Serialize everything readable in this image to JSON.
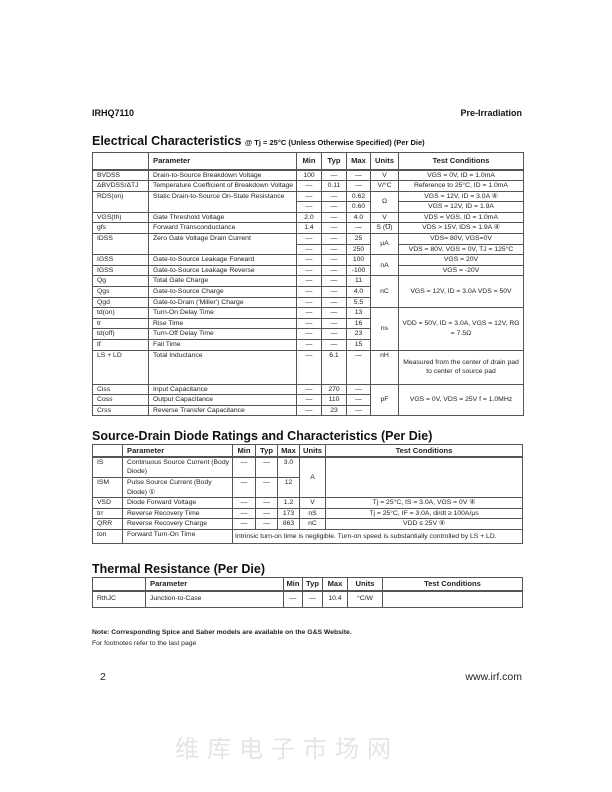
{
  "header": {
    "part_number": "IRHQ7110",
    "category": "Pre-Irradiation"
  },
  "electrical": {
    "title": "Electrical Characteristics",
    "subtitle": "@ Tj = 25°C (Unless Otherwise Specified) (Per Die)",
    "columns": [
      "",
      "Parameter",
      "Min",
      "Typ",
      "Max",
      "Units",
      "Test Conditions"
    ],
    "rows": [
      {
        "sym": "BVDSS",
        "param": "Drain-to-Source Breakdown Voltage",
        "min": "100",
        "typ": "—",
        "max": "—",
        "units": "V",
        "cond": "VGS = 0V, ID = 1.0mA"
      },
      {
        "sym": "ΔBVDSS/ΔTJ",
        "param": "Temperature Coefficient of Breakdown Voltage",
        "min": "—",
        "typ": "0.11",
        "max": "—",
        "units": "V/°C",
        "cond": "Reference to 25°C, ID = 1.0mA"
      },
      {
        "sym": "RDS(on)",
        "sym_span": 2,
        "param": "Static Drain-to-Source On-State Resistance",
        "param_span": 2,
        "min": "—",
        "typ": "—",
        "max": "0.62",
        "units": "Ω",
        "units_span": 2,
        "cond": "VGS = 12V, ID = 3.0A ④"
      },
      {
        "min": "—",
        "typ": "—",
        "max": "0.60",
        "cond": "VGS = 12V, ID = 1.9A"
      },
      {
        "sym": "VGS(th)",
        "param": "Gate Threshold Voltage",
        "min": "2.0",
        "typ": "—",
        "max": "4.0",
        "units": "V",
        "cond": "VDS = VGS, ID = 1.0mA"
      },
      {
        "sym": "gfs",
        "param": "Forward Transconductance",
        "min": "1.4",
        "typ": "—",
        "max": "—",
        "units": "S (℧)",
        "cond": "VDS > 15V, IDS = 1.9A ④"
      },
      {
        "sym": "IDSS",
        "sym_span": 2,
        "param": "Zero Gate Voltage Drain Current",
        "param_span": 2,
        "min": "—",
        "typ": "—",
        "max": "25",
        "units": "μA",
        "units_span": 2,
        "cond": "VDS= 80V, VGS=0V"
      },
      {
        "min": "—",
        "typ": "—",
        "max": "250",
        "cond": "VDS = 80V, VGS = 0V, TJ = 125°C"
      },
      {
        "sym": "IGSS",
        "param": "Gate-to-Source Leakage Forward",
        "min": "—",
        "typ": "—",
        "max": "100",
        "units": "nA",
        "units_span": 2,
        "cond": "VGS = 20V"
      },
      {
        "sym": "IGSS",
        "param": "Gate-to-Source Leakage Reverse",
        "min": "—",
        "typ": "—",
        "max": "-100",
        "cond": "VGS = -20V"
      },
      {
        "sym": "Qg",
        "param": "Total Gate Charge",
        "min": "—",
        "typ": "—",
        "max": "11",
        "units": "nC",
        "units_span": 3,
        "cond": "VGS = 12V, ID = 3.0A VDS = 50V",
        "cond_span": 3
      },
      {
        "sym": "Qgs",
        "param": "Gate-to-Source Charge",
        "min": "—",
        "typ": "—",
        "max": "4.0"
      },
      {
        "sym": "Qgd",
        "param": "Gate-to-Drain ('Miller') Charge",
        "min": "—",
        "typ": "—",
        "max": "5.5"
      },
      {
        "sym": "td(on)",
        "param": "Turn-On Delay Time",
        "min": "—",
        "typ": "—",
        "max": "13",
        "units": "ns",
        "units_span": 4,
        "cond": "VDD = 50V, ID = 3.0A, VGS = 12V, RG = 7.5Ω",
        "cond_span": 4
      },
      {
        "sym": "tr",
        "param": "Rise Time",
        "min": "—",
        "typ": "—",
        "max": "16"
      },
      {
        "sym": "td(off)",
        "param": "Turn-Off Delay Time",
        "min": "—",
        "typ": "—",
        "max": "23"
      },
      {
        "sym": "tf",
        "param": "Fall Time",
        "min": "—",
        "typ": "—",
        "max": "15"
      },
      {
        "sym": "LS + LD",
        "param": "Total Inductance",
        "min": "—",
        "typ": "6.1",
        "max": "—",
        "units": "nH",
        "cond": "Measured from the center of drain pad to center of source pad",
        "tall": true
      },
      {
        "sym": "Ciss",
        "param": "Input Capacitance",
        "min": "—",
        "typ": "270",
        "max": "—",
        "units": "pF",
        "units_span": 3,
        "cond": "VGS = 0V, VDS = 25V f = 1.0MHz",
        "cond_span": 3
      },
      {
        "sym": "Coss",
        "param": "Output Capacitance",
        "min": "—",
        "typ": "110",
        "max": "—"
      },
      {
        "sym": "Crss",
        "param": "Reverse Transfer Capacitance",
        "min": "—",
        "typ": "23",
        "max": "—"
      }
    ]
  },
  "diode": {
    "title": "Source-Drain Diode Ratings and Characteristics (Per Die)",
    "columns": [
      "",
      "Parameter",
      "Min",
      "Typ",
      "Max",
      "Units",
      "Test Conditions"
    ],
    "rows": [
      {
        "sym": "IS",
        "param": "Continuous Source Current (Body Diode)",
        "min": "—",
        "typ": "—",
        "max": "3.0",
        "units": "A",
        "units_span": 2,
        "cond": "",
        "cond_span": 2
      },
      {
        "sym": "ISM",
        "param": "Pulse Source Current (Body Diode) ①",
        "min": "—",
        "typ": "—",
        "max": "12"
      },
      {
        "sym": "VSD",
        "param": "Diode Forward Voltage",
        "min": "—",
        "typ": "—",
        "max": "1.2",
        "units": "V",
        "cond": "Tj = 25°C, IS = 3.0A, VGS = 0V ④"
      },
      {
        "sym": "trr",
        "param": "Reverse Recovery Time",
        "min": "—",
        "typ": "—",
        "max": "173",
        "units": "nS",
        "cond": "Tj = 25°C, IF = 3.0A, di/dt ≥ 100A/μs"
      },
      {
        "sym": "QRR",
        "param": "Reverse Recovery Charge",
        "min": "—",
        "typ": "—",
        "max": "863",
        "units": "nC",
        "cond": "VDD ≤ 25V ④"
      },
      {
        "sym": "ton",
        "param": "Forward Turn-On Time",
        "note": "Intrinsic turn-on time is negligible. Turn-on speed is substantially controlled by LS + LD."
      }
    ]
  },
  "thermal": {
    "title": "Thermal Resistance (Per Die)",
    "columns": [
      "",
      "Parameter",
      "Min",
      "Typ",
      "Max",
      "Units",
      "Test Conditions"
    ],
    "rows": [
      {
        "sym": "RthJC",
        "param": "Junction-to-Case",
        "min": "—",
        "typ": "—",
        "max": "10.4",
        "units": "°C/W",
        "cond": ""
      }
    ]
  },
  "watermark": "维库电子市场网",
  "notes": {
    "spice": "Note: Corresponding Spice and Saber models are available on the G&S Website.",
    "footnotes": "For footnotes refer to the last page"
  },
  "footer": {
    "page": "2",
    "website": "www.irf.com"
  }
}
